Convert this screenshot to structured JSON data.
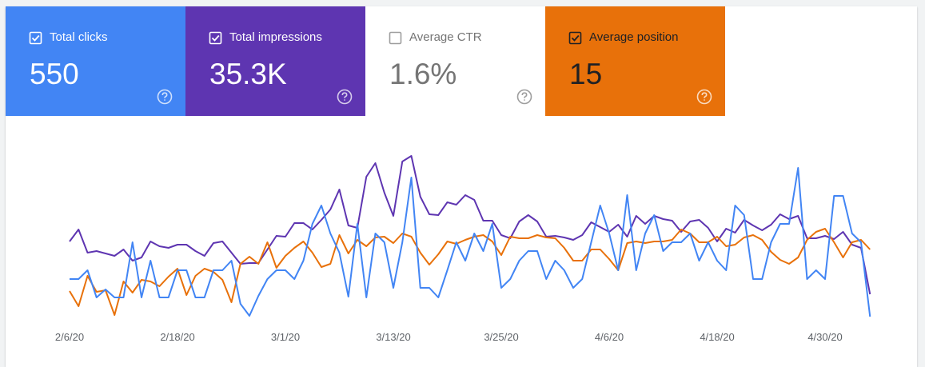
{
  "metrics": [
    {
      "label": "Total clicks",
      "value": "550",
      "checked": true,
      "background": "#4285f4",
      "foreground": "#ffffff"
    },
    {
      "label": "Total impressions",
      "value": "35.3K",
      "checked": true,
      "background": "#5e35b1",
      "foreground": "#ffffff"
    },
    {
      "label": "Average CTR",
      "value": "1.6%",
      "checked": false,
      "background": "#ffffff",
      "foreground": "#757575"
    },
    {
      "label": "Average position",
      "value": "15",
      "checked": true,
      "background": "#e8710a",
      "foreground": "#202124"
    }
  ],
  "chart_data": {
    "type": "line",
    "categories": [
      "2/6/20",
      null,
      null,
      null,
      null,
      null,
      null,
      null,
      null,
      null,
      null,
      null,
      "2/18/20",
      null,
      null,
      null,
      null,
      null,
      null,
      null,
      null,
      null,
      null,
      null,
      "3/1/20",
      null,
      null,
      null,
      null,
      null,
      null,
      null,
      null,
      null,
      null,
      null,
      "3/13/20",
      null,
      null,
      null,
      null,
      null,
      null,
      null,
      null,
      null,
      null,
      null,
      "3/25/20",
      null,
      null,
      null,
      null,
      null,
      null,
      null,
      null,
      null,
      null,
      null,
      "4/6/20",
      null,
      null,
      null,
      null,
      null,
      null,
      null,
      null,
      null,
      null,
      null,
      "4/18/20",
      null,
      null,
      null,
      null,
      null,
      null,
      null,
      null,
      null,
      null,
      null,
      "4/30/20",
      null,
      null,
      null,
      null,
      null
    ],
    "ylim": [
      0,
      210
    ],
    "series": [
      {
        "color": "#5e35b1",
        "values": [
          98,
          113,
          84,
          86,
          83,
          80,
          88,
          74,
          78,
          98,
          92,
          90,
          94,
          94,
          86,
          80,
          96,
          98,
          84,
          70,
          71,
          71,
          88,
          105,
          104,
          121,
          121,
          113,
          125,
          138,
          163,
          118,
          115,
          179,
          196,
          159,
          130,
          198,
          205,
          154,
          132,
          131,
          147,
          144,
          156,
          150,
          124,
          124,
          106,
          102,
          123,
          131,
          123,
          104,
          105,
          103,
          100,
          106,
          122,
          116,
          110,
          119,
          104,
          130,
          120,
          130,
          126,
          124,
          110,
          123,
          125,
          115,
          98,
          114,
          109,
          125,
          118,
          112,
          119,
          132,
          126,
          130,
          102,
          102,
          105,
          101,
          110,
          94,
          90,
          32
        ]
      },
      {
        "color": "#e8710a",
        "values": [
          36,
          17,
          55,
          35,
          37,
          6,
          48,
          34,
          50,
          48,
          42,
          54,
          64,
          31,
          55,
          64,
          60,
          50,
          22,
          70,
          79,
          70,
          97,
          65,
          80,
          90,
          98,
          84,
          66,
          70,
          106,
          83,
          100,
          92,
          103,
          104,
          96,
          108,
          104,
          84,
          69,
          82,
          98,
          95,
          100,
          104,
          106,
          98,
          81,
          104,
          102,
          102,
          106,
          103,
          102,
          90,
          74,
          74,
          88,
          88,
          76,
          62,
          96,
          98,
          96,
          98,
          98,
          100,
          113,
          108,
          97,
          97,
          104,
          92,
          94,
          103,
          106,
          100,
          85,
          75,
          70,
          78,
          100,
          110,
          114,
          97,
          78,
          97,
          100,
          88
        ]
      },
      {
        "color": "#4285f4",
        "values": [
          51,
          51,
          62,
          28,
          38,
          28,
          28,
          97,
          28,
          74,
          28,
          28,
          62,
          62,
          28,
          28,
          62,
          62,
          74,
          20,
          5,
          30,
          51,
          62,
          62,
          51,
          74,
          120,
          143,
          108,
          84,
          29,
          120,
          28,
          108,
          97,
          40,
          97,
          178,
          40,
          40,
          28,
          62,
          97,
          74,
          108,
          86,
          120,
          40,
          51,
          74,
          86,
          86,
          51,
          74,
          62,
          40,
          51,
          97,
          143,
          108,
          62,
          156,
          62,
          108,
          131,
          86,
          97,
          97,
          108,
          74,
          97,
          74,
          62,
          143,
          131,
          51,
          51,
          97,
          120,
          120,
          190,
          51,
          62,
          51,
          155,
          155,
          108,
          97,
          4
        ]
      }
    ]
  }
}
